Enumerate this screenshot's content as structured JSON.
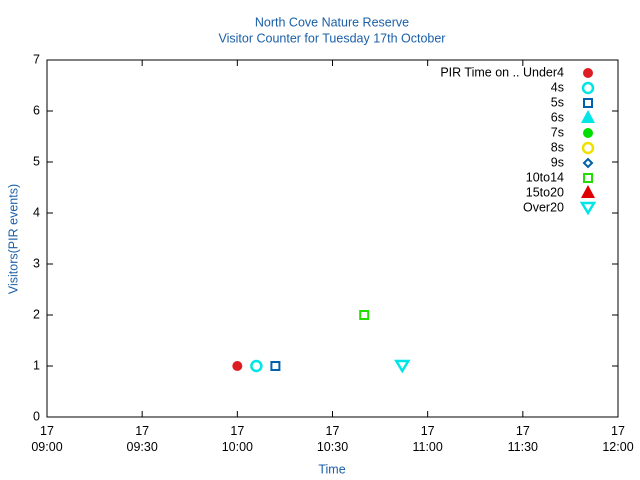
{
  "chart_data": {
    "type": "scatter",
    "title": "North Cove Nature Reserve",
    "subtitle": "Visitor Counter for Tuesday 17th October",
    "x_label": "Time",
    "y_label": "Visitors(PIR events)",
    "xlim": [
      "17 09:00",
      "17 12:00"
    ],
    "xticks": [
      "17 09:00",
      "17 09:30",
      "17 10:00",
      "17 10:30",
      "17 11:00",
      "17 11:30",
      "17 12:00"
    ],
    "ylim": [
      0,
      7
    ],
    "yticks": [
      0,
      1,
      2,
      3,
      4,
      5,
      6,
      7
    ],
    "legend": "top-right",
    "series": [
      {
        "name": "PIR Time on .. Under4",
        "color": "#dd1c24",
        "marker": "filled-circle",
        "x": [
          "17 10:00"
        ],
        "values": [
          1
        ]
      },
      {
        "name": "4s",
        "color": "#00e5e5",
        "marker": "open-circle",
        "x": [
          "17 10:06"
        ],
        "values": [
          1
        ]
      },
      {
        "name": "5s",
        "color": "#0060ad",
        "marker": "open-square",
        "x": [
          "17 10:12"
        ],
        "values": [
          1
        ]
      },
      {
        "name": "6s",
        "color": "#00e5e5",
        "marker": "filled-triangle-up",
        "x": [],
        "values": []
      },
      {
        "name": "7s",
        "color": "#00dd00",
        "marker": "filled-circle",
        "x": [],
        "values": []
      },
      {
        "name": "8s",
        "color": "#f0e000",
        "marker": "open-circle",
        "x": [],
        "values": []
      },
      {
        "name": "9s",
        "color": "#0060ad",
        "marker": "open-diamond",
        "x": [],
        "values": []
      },
      {
        "name": "10to14",
        "color": "#22dd00",
        "marker": "open-square",
        "x": [
          "17 10:40"
        ],
        "values": [
          2
        ]
      },
      {
        "name": "15to20",
        "color": "#e00000",
        "marker": "filled-triangle-up",
        "x": [],
        "values": []
      },
      {
        "name": "Over20",
        "color": "#00e5e5",
        "marker": "open-triangle-down",
        "x": [
          "17 10:52"
        ],
        "values": [
          1
        ]
      }
    ]
  }
}
